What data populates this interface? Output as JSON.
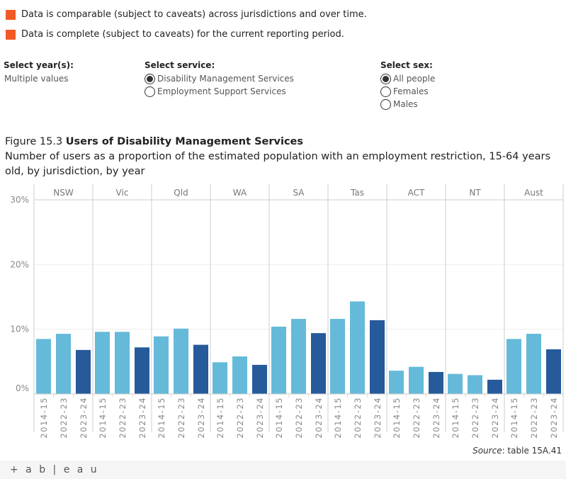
{
  "legend": [
    {
      "text": "Data is comparable (subject to caveats) across jurisdictions and over time.",
      "color": "#f15a24"
    },
    {
      "text": "Data is complete (subject to caveats) for the current reporting period.",
      "color": "#f15a24"
    }
  ],
  "filters": {
    "year": {
      "label": "Select year(s):",
      "value": "Multiple values"
    },
    "service": {
      "label": "Select service:",
      "options": [
        "Disability Management Services",
        "Employment Support Services"
      ],
      "selected": 0
    },
    "sex": {
      "label": "Select sex:",
      "options": [
        "All people",
        "Females",
        "Males"
      ],
      "selected": 0
    }
  },
  "figure": {
    "number": "Figure 15.3",
    "title": "Users of Disability Management Services",
    "subtitle": "Number of users as a proportion of the estimated population with an employment restriction, 15-64 years old, by jurisdiction, by year"
  },
  "source": {
    "label": "Source",
    "text": ": table 15A.41"
  },
  "footer": {
    "logo": "+ a b | e a u"
  },
  "chart_data": {
    "type": "bar",
    "panels": [
      "NSW",
      "Vic",
      "Qld",
      "WA",
      "SA",
      "Tas",
      "ACT",
      "NT",
      "Aust"
    ],
    "categories": [
      "2014-15",
      "2022-23",
      "2023-24"
    ],
    "values": [
      [
        8.5,
        9.3,
        6.8
      ],
      [
        9.6,
        9.6,
        7.2
      ],
      [
        8.9,
        10.1,
        7.6
      ],
      [
        4.9,
        5.8,
        4.5
      ],
      [
        10.4,
        11.6,
        9.4
      ],
      [
        11.6,
        14.3,
        11.4
      ],
      [
        3.6,
        4.2,
        3.4
      ],
      [
        3.1,
        2.9,
        2.2
      ],
      [
        8.5,
        9.3,
        6.9
      ]
    ],
    "colors": [
      "#65bad9",
      "#65bad9",
      "#265a9a"
    ],
    "yticks": [
      "0%",
      "10%",
      "20%",
      "30%"
    ],
    "ylim": [
      0,
      30
    ],
    "grid": true
  }
}
